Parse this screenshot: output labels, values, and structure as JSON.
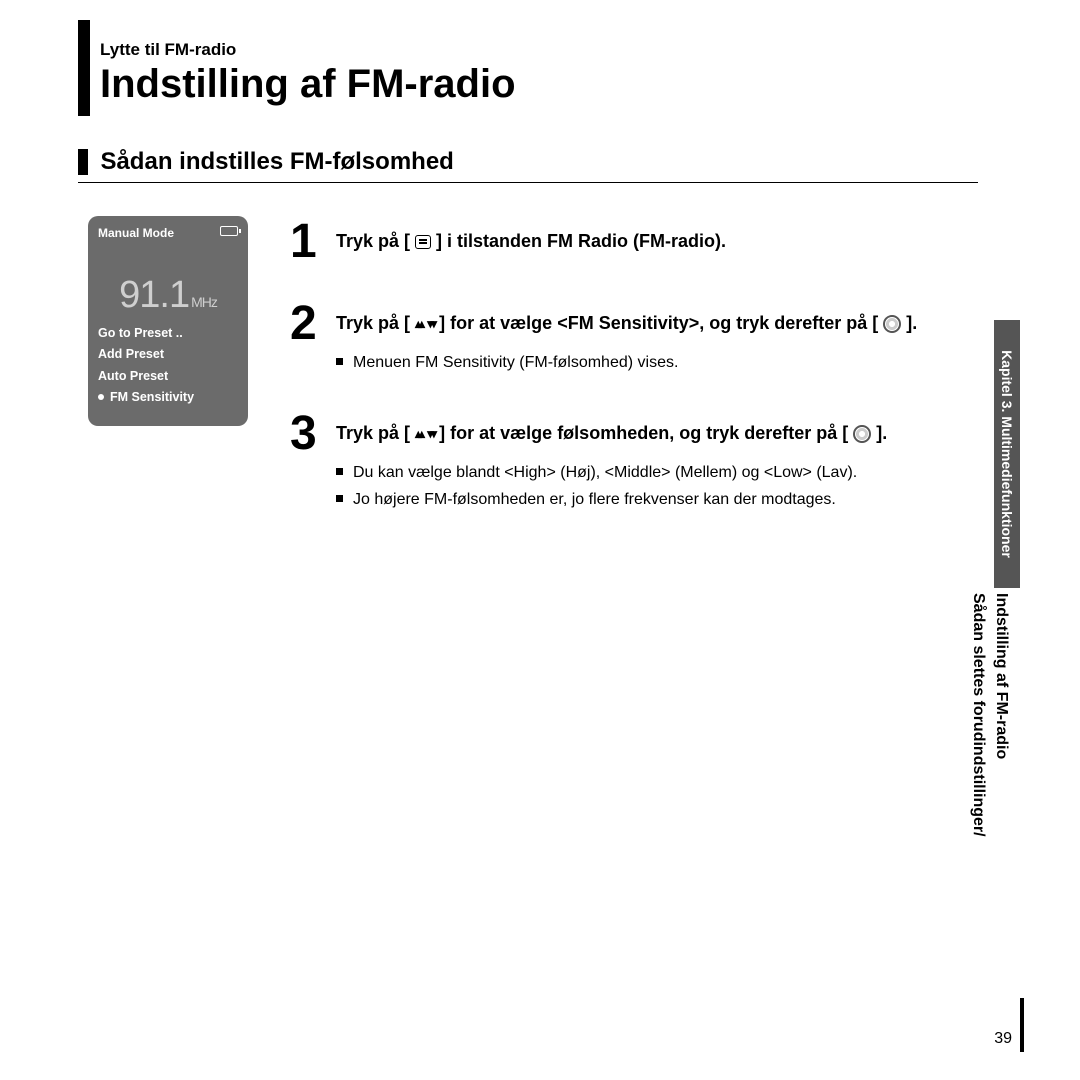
{
  "breadcrumb": "Lytte til FM-radio",
  "title": "Indstilling af FM-radio",
  "subhead": "Sådan indstilles FM-følsomhed",
  "device": {
    "mode": "Manual Mode",
    "freq_value": "91.1",
    "freq_unit": "MHz",
    "menu": {
      "item1": "Go to Preset ..",
      "item2": "Add Preset",
      "item3": "Auto Preset",
      "item4": "FM Sensitivity"
    }
  },
  "steps": {
    "s1": {
      "num": "1",
      "pre": "Tryk på [ ",
      "post": " ] i tilstanden FM Radio (FM-radio)."
    },
    "s2": {
      "num": "2",
      "pre": "Tryk på [ ",
      "mid": " ] for at vælge <FM Sensitivity>, og tryk derefter på [ ",
      "post": " ].",
      "bullet1": "Menuen FM Sensitivity (FM-følsomhed) vises."
    },
    "s3": {
      "num": "3",
      "pre": "Tryk på [ ",
      "mid": " ] for at vælge følsomheden, og tryk derefter på [ ",
      "post": " ].",
      "bullet1": "Du kan vælge blandt <High> (Høj), <Middle> (Mellem) og <Low> (Lav).",
      "bullet2": "Jo højere FM-følsomheden er, jo flere frekvenser kan der modtages."
    }
  },
  "side": {
    "chapter": "Kapitel 3. Multimediefunktioner",
    "line1": "Sådan slettes forudindstillinger/",
    "line2": "Indstilling af FM-radio"
  },
  "pagenum": "39"
}
